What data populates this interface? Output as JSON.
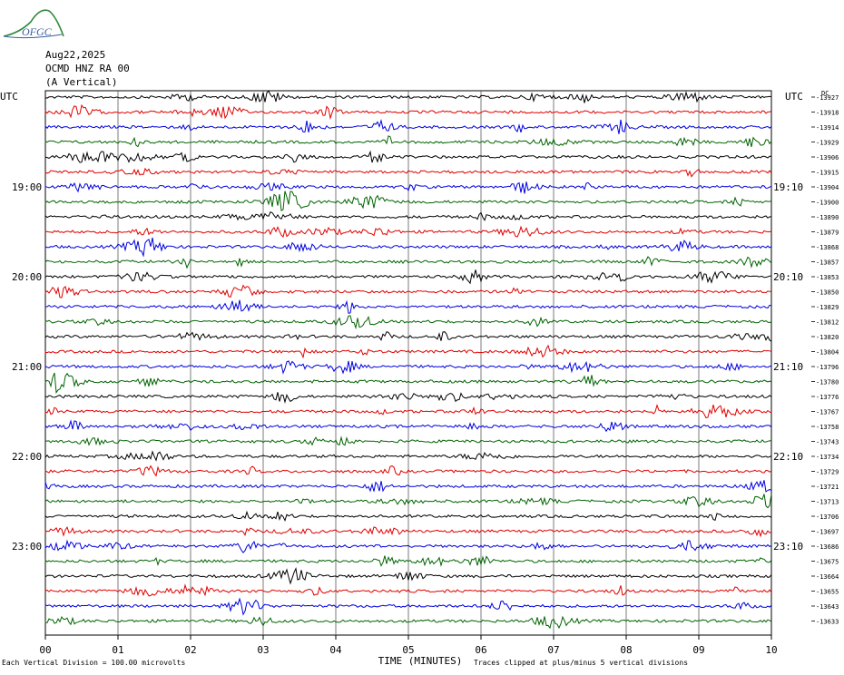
{
  "logo": {
    "text": "OFGC"
  },
  "header": {
    "date": "Aug22,2025",
    "station": "OCMD HNZ RA 00",
    "component": "(A Vertical)"
  },
  "footer": {
    "scale_note": "Each Vertical Division = 100.00 microvolts",
    "clip_note": "Traces clipped at plus/minus 5 vertical divisions"
  },
  "colors": {
    "trace_cycle": [
      "#000000",
      "#e00000",
      "#0000e0",
      "#006400"
    ],
    "gridline": "#5a5a5a"
  },
  "chart_data": {
    "type": "line",
    "title": "",
    "xlabel": "TIME (MINUTES)",
    "xlim": [
      0,
      10
    ],
    "x_ticks": [
      "00",
      "01",
      "02",
      "03",
      "04",
      "05",
      "06",
      "07",
      "08",
      "09",
      "10"
    ],
    "left_axis_label": "UTC",
    "right_axis_label": "UTC",
    "right_corner_label": "DC",
    "left_time_labels": [
      "19:00",
      "20:00",
      "21:00",
      "22:00",
      "23:00"
    ],
    "right_time_labels": [
      "19:10",
      "20:10",
      "21:10",
      "22:10",
      "23:10"
    ],
    "time_label_rows": [
      6,
      12,
      18,
      24,
      30
    ],
    "row_count": 36,
    "dc_offsets": [
      "-13927",
      "-13918",
      "-13914",
      "-13929",
      "-13906",
      "-13915",
      "-13904",
      "-13900",
      "-13890",
      "-13879",
      "-13868",
      "-13857",
      "-13853",
      "-13850",
      "-13829",
      "-13812",
      "-13820",
      "-13804",
      "-13796",
      "-13780",
      "-13776",
      "-13767",
      "-13758",
      "-13743",
      "-13734",
      "-13729",
      "-13721",
      "-13713",
      "-13706",
      "-13697",
      "-13686",
      "-13675",
      "-13664",
      "-13655",
      "-13643",
      "-13633"
    ]
  }
}
